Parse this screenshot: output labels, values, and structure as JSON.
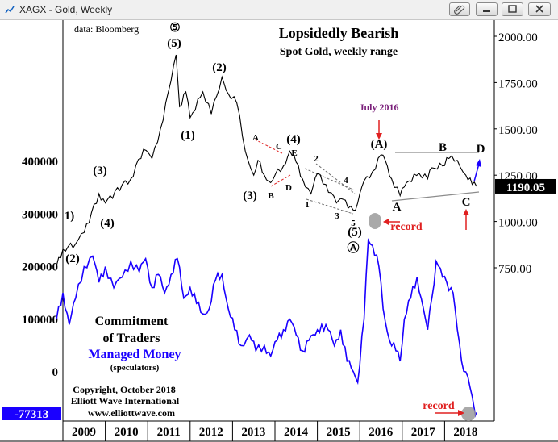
{
  "window": {
    "title": "XAGX - Gold, Weekly",
    "icons": [
      "chart-icon",
      "paperclip-icon",
      "minimize-icon",
      "maximize-icon",
      "close-icon"
    ]
  },
  "header": {
    "source": "data: Bloomberg",
    "title": "Lopsidedly Bearish",
    "subtitle": "Spot Gold, weekly range"
  },
  "credits": {
    "copyright": "Copyright, October 2018",
    "company": "Elliott Wave International",
    "url": "www.elliottwave.com"
  },
  "cot_label": {
    "line1": "Commitment",
    "line2": "of Traders",
    "line3": "Managed Money",
    "line4": "(speculators)"
  },
  "colors": {
    "price": "#000000",
    "cot": "#1a00ff",
    "annotation_red": "#e02020",
    "july_label": "#7a1f7a",
    "trend_line": "#8c8c8c",
    "current_price_box": "#000000",
    "current_cot_box": "#1a00ff"
  },
  "chart_data": [
    {
      "type": "line",
      "name": "Spot Gold weekly",
      "y_axis": "right",
      "ylim": [
        700,
        2100
      ],
      "y_ticks": [
        "2000.00",
        "1750.00",
        "1500.00",
        "1250.00",
        "1000.00",
        "750.00"
      ],
      "current_value_label": "1190.05",
      "x_years": [
        2008.85,
        2009.0,
        2009.3,
        2009.5,
        2009.85,
        2010.0,
        2010.4,
        2010.6,
        2010.9,
        2011.1,
        2011.3,
        2011.55,
        2011.67,
        2011.75,
        2011.9,
        2012.0,
        2012.3,
        2012.5,
        2012.75,
        2012.9,
        2013.1,
        2013.3,
        2013.5,
        2013.6,
        2013.75,
        2013.9,
        2014.0,
        2014.2,
        2014.35,
        2014.5,
        2014.65,
        2014.85,
        2015.0,
        2015.2,
        2015.45,
        2015.6,
        2015.85,
        2015.95,
        2016.1,
        2016.3,
        2016.5,
        2016.6,
        2016.75,
        2016.95,
        2017.1,
        2017.4,
        2017.6,
        2017.7,
        2017.95,
        2018.1,
        2018.3,
        2018.5,
        2018.65,
        2018.75
      ],
      "values": [
        760,
        850,
        880,
        940,
        1150,
        1100,
        1200,
        1230,
        1390,
        1340,
        1500,
        1760,
        1900,
        1620,
        1700,
        1560,
        1700,
        1580,
        1780,
        1690,
        1640,
        1380,
        1250,
        1330,
        1250,
        1210,
        1250,
        1300,
        1380,
        1320,
        1230,
        1150,
        1260,
        1200,
        1100,
        1120,
        1060,
        1100,
        1220,
        1270,
        1360,
        1330,
        1230,
        1140,
        1210,
        1260,
        1230,
        1290,
        1300,
        1340,
        1330,
        1250,
        1200,
        1190
      ],
      "wave_labels": [
        "⑤",
        "(5)",
        "(1)",
        "(2)",
        "(3)",
        "(3)",
        "(4)",
        "(4)",
        "(5)",
        "(5)",
        "Ⓐ",
        "(A)",
        "A",
        "B",
        "C",
        "D",
        "A",
        "B",
        "C",
        "D",
        "E",
        "1",
        "2",
        "3",
        "4",
        "5"
      ],
      "annotations": [
        "July 2016",
        "record"
      ]
    },
    {
      "type": "line",
      "name": "Commitment of Traders, Managed Money (speculators)",
      "y_axis": "left",
      "ylim": [
        -77313,
        400000
      ],
      "y_ticks": [
        "400000",
        "300000",
        "200000",
        "100000",
        "0",
        "-77313"
      ],
      "current_value_label": "-77313",
      "x_years": [
        2008.85,
        2009.0,
        2009.15,
        2009.3,
        2009.5,
        2009.7,
        2009.85,
        2010.0,
        2010.2,
        2010.4,
        2010.6,
        2010.8,
        2010.95,
        2011.1,
        2011.25,
        2011.4,
        2011.55,
        2011.7,
        2011.85,
        2012.0,
        2012.15,
        2012.3,
        2012.45,
        2012.6,
        2012.75,
        2012.9,
        2013.05,
        2013.2,
        2013.4,
        2013.55,
        2013.75,
        2013.9,
        2014.05,
        2014.2,
        2014.35,
        2014.5,
        2014.65,
        2014.8,
        2014.95,
        2015.1,
        2015.25,
        2015.4,
        2015.55,
        2015.7,
        2015.85,
        2015.95,
        2016.1,
        2016.2,
        2016.3,
        2016.45,
        2016.55,
        2016.7,
        2016.85,
        2016.95,
        2017.05,
        2017.2,
        2017.35,
        2017.5,
        2017.6,
        2017.7,
        2017.8,
        2017.95,
        2018.05,
        2018.2,
        2018.3,
        2018.4,
        2018.5,
        2018.6,
        2018.7,
        2018.75
      ],
      "values": [
        100000,
        150000,
        90000,
        140000,
        200000,
        220000,
        170000,
        200000,
        160000,
        180000,
        210000,
        190000,
        215000,
        160000,
        185000,
        150000,
        185000,
        215000,
        140000,
        160000,
        130000,
        110000,
        120000,
        175000,
        185000,
        120000,
        80000,
        50000,
        70000,
        40000,
        50000,
        30000,
        60000,
        80000,
        100000,
        70000,
        40000,
        60000,
        70000,
        90000,
        80000,
        50000,
        80000,
        20000,
        0,
        -20000,
        100000,
        250000,
        240000,
        200000,
        120000,
        60000,
        40000,
        20000,
        100000,
        140000,
        180000,
        120000,
        80000,
        140000,
        210000,
        180000,
        170000,
        150000,
        80000,
        20000,
        0,
        -30000,
        -70000,
        -77313
      ]
    }
  ],
  "x_axis": {
    "labels": [
      "2009",
      "2010",
      "2011",
      "2012",
      "2013",
      "2014",
      "2015",
      "2016",
      "2017",
      "2018"
    ]
  }
}
